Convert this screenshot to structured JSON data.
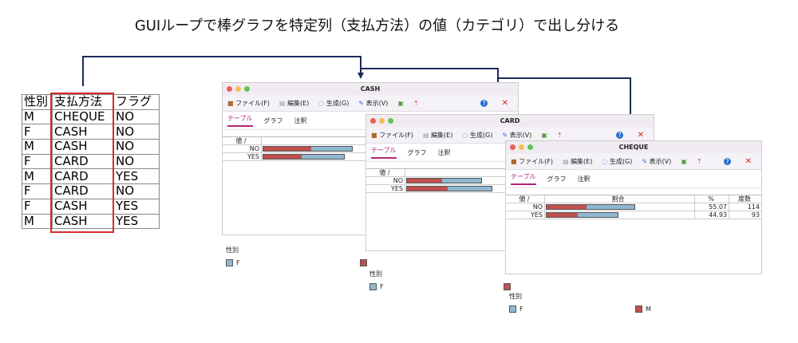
{
  "title": "GUIループで棒グラフを特定列（支払方法）の値（カテゴリ）で出し分ける",
  "source_table": {
    "headers": [
      "性別",
      "支払方法",
      "フラグ"
    ],
    "rows": [
      [
        "M",
        "CHEQUE",
        "NO"
      ],
      [
        "F",
        "CASH",
        "NO"
      ],
      [
        "M",
        "CASH",
        "NO"
      ],
      [
        "F",
        "CARD",
        "NO"
      ],
      [
        "M",
        "CARD",
        "YES"
      ],
      [
        "F",
        "CARD",
        "NO"
      ],
      [
        "F",
        "CASH",
        "YES"
      ],
      [
        "M",
        "CASH",
        "YES"
      ]
    ]
  },
  "menu": {
    "file": "ファイル(F)",
    "edit": "編集(E)",
    "generate": "生成(G)",
    "view": "表示(V)"
  },
  "tabs": [
    "テーブル",
    "グラフ",
    "注釈"
  ],
  "columns": {
    "value": "値 /",
    "ratio": "割合",
    "percent": "%",
    "count": "度数"
  },
  "legend": {
    "title": "性別",
    "f": "F",
    "m": "M"
  },
  "colors": {
    "m": "#c0504d",
    "f": "#8fb8d0",
    "accent": "#b0247a",
    "arrow": "#1d2a5a"
  },
  "windows": [
    {
      "title": "CASH",
      "rows": [
        {
          "value": "NO",
          "total": 0.99,
          "m_share": 0.54
        },
        {
          "value": "YES",
          "total": 0.9,
          "m_share": 0.48
        }
      ]
    },
    {
      "title": "CARD",
      "rows": [
        {
          "value": "NO",
          "total": 0.83,
          "m_share": 0.47
        },
        {
          "value": "YES",
          "total": 0.95,
          "m_share": 0.48
        }
      ]
    },
    {
      "title": "CHEQUE",
      "rows": [
        {
          "value": "NO",
          "total": 0.98,
          "m_share": 0.45,
          "percent": "55.07",
          "count": "114"
        },
        {
          "value": "YES",
          "total": 0.8,
          "m_share": 0.44,
          "percent": "44.93",
          "count": "93"
        }
      ]
    }
  ]
}
